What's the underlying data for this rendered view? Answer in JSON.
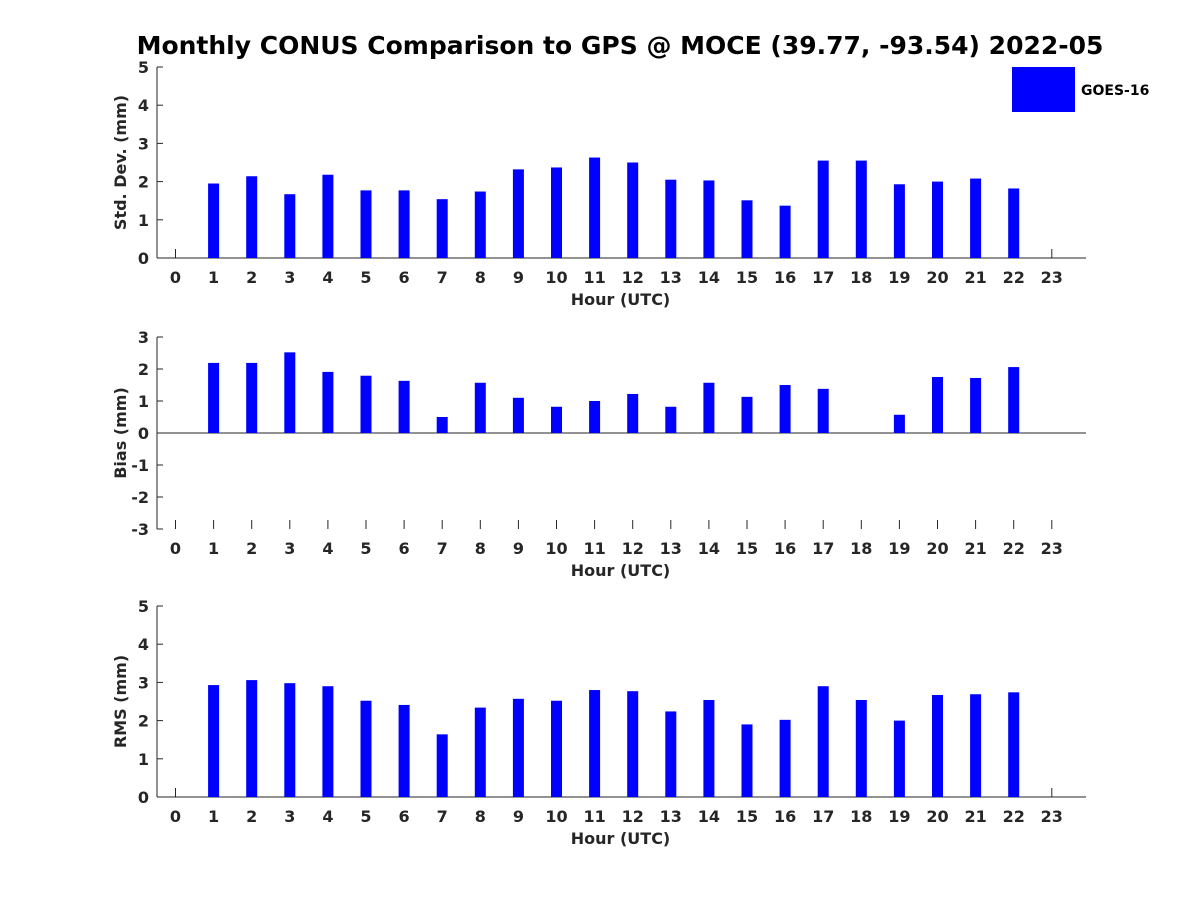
{
  "chart_data": [
    {
      "type": "bar",
      "title": "Monthly CONUS Comparison to GPS @ MOCE (39.77, -93.54) 2022-05",
      "xlabel": "Hour (UTC)",
      "ylabel": "Std. Dev. (mm)",
      "ylim": [
        0,
        5
      ],
      "yticks": [
        0,
        1,
        2,
        3,
        4,
        5
      ],
      "categories": [
        "0",
        "1",
        "2",
        "3",
        "4",
        "5",
        "6",
        "7",
        "8",
        "9",
        "10",
        "11",
        "12",
        "13",
        "14",
        "15",
        "16",
        "17",
        "18",
        "19",
        "20",
        "21",
        "22",
        "23"
      ],
      "series": [
        {
          "name": "GOES-16",
          "color": "#0000ff",
          "values": [
            null,
            1.95,
            2.14,
            1.67,
            2.18,
            1.77,
            1.77,
            1.54,
            1.74,
            2.32,
            2.37,
            2.63,
            2.5,
            2.05,
            2.03,
            1.51,
            1.37,
            2.55,
            2.55,
            1.93,
            2.0,
            2.08,
            1.82,
            null
          ]
        }
      ],
      "legend": "top-right",
      "grid": false
    },
    {
      "type": "bar",
      "title": "",
      "xlabel": "Hour (UTC)",
      "ylabel": "Bias (mm)",
      "ylim": [
        -3,
        3
      ],
      "yticks": [
        -3,
        -2,
        -1,
        0,
        1,
        2,
        3
      ],
      "categories": [
        "0",
        "1",
        "2",
        "3",
        "4",
        "5",
        "6",
        "7",
        "8",
        "9",
        "10",
        "11",
        "12",
        "13",
        "14",
        "15",
        "16",
        "17",
        "18",
        "19",
        "20",
        "21",
        "22",
        "23"
      ],
      "series": [
        {
          "color": "#0000ff",
          "values": [
            null,
            2.19,
            2.19,
            2.52,
            1.91,
            1.79,
            1.63,
            0.5,
            1.57,
            1.1,
            0.82,
            1.0,
            1.22,
            0.82,
            1.57,
            1.13,
            1.5,
            1.38,
            0.0,
            0.57,
            1.75,
            1.72,
            2.06,
            null
          ]
        }
      ],
      "grid": false
    },
    {
      "type": "bar",
      "title": "",
      "xlabel": "Hour (UTC)",
      "ylabel": "RMS (mm)",
      "ylim": [
        0,
        5
      ],
      "yticks": [
        0,
        1,
        2,
        3,
        4,
        5
      ],
      "categories": [
        "0",
        "1",
        "2",
        "3",
        "4",
        "5",
        "6",
        "7",
        "8",
        "9",
        "10",
        "11",
        "12",
        "13",
        "14",
        "15",
        "16",
        "17",
        "18",
        "19",
        "20",
        "21",
        "22",
        "23"
      ],
      "series": [
        {
          "color": "#0000ff",
          "values": [
            null,
            2.93,
            3.06,
            2.98,
            2.9,
            2.52,
            2.41,
            1.64,
            2.34,
            2.57,
            2.52,
            2.8,
            2.77,
            2.24,
            2.54,
            1.9,
            2.02,
            2.9,
            2.54,
            2.0,
            2.67,
            2.69,
            2.74,
            null
          ]
        }
      ],
      "grid": false
    }
  ]
}
